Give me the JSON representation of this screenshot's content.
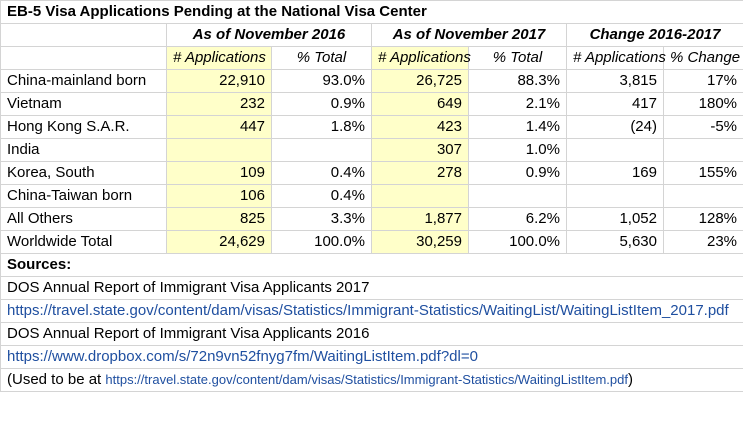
{
  "title": "EB-5 Visa Applications Pending at the National Visa Center",
  "group_headers": {
    "nov2016": "As of November 2016",
    "nov2017": "As of November 2017",
    "change": "Change 2016-2017"
  },
  "sub_headers": {
    "applications": "# Applications",
    "pct_total": "% Total",
    "pct_change": "% Change"
  },
  "rows": [
    {
      "country": "China-mainland born",
      "apps2016": "22,910",
      "pct2016": "93.0%",
      "apps2017": "26,725",
      "pct2017": "88.3%",
      "chg_apps": "3,815",
      "chg_pct": "17%"
    },
    {
      "country": "Vietnam",
      "apps2016": "232",
      "pct2016": "0.9%",
      "apps2017": "649",
      "pct2017": "2.1%",
      "chg_apps": "417",
      "chg_pct": "180%"
    },
    {
      "country": "Hong Kong S.A.R.",
      "apps2016": "447",
      "pct2016": "1.8%",
      "apps2017": "423",
      "pct2017": "1.4%",
      "chg_apps": "(24)",
      "chg_pct": "-5%"
    },
    {
      "country": "India",
      "apps2016": "",
      "pct2016": "",
      "apps2017": "307",
      "pct2017": "1.0%",
      "chg_apps": "",
      "chg_pct": ""
    },
    {
      "country": "Korea, South",
      "apps2016": "109",
      "pct2016": "0.4%",
      "apps2017": "278",
      "pct2017": "0.9%",
      "chg_apps": "169",
      "chg_pct": "155%"
    },
    {
      "country": "China-Taiwan born",
      "apps2016": "106",
      "pct2016": "0.4%",
      "apps2017": "",
      "pct2017": "",
      "chg_apps": "",
      "chg_pct": ""
    },
    {
      "country": "All Others",
      "apps2016": "825",
      "pct2016": "3.3%",
      "apps2017": "1,877",
      "pct2017": "6.2%",
      "chg_apps": "1,052",
      "chg_pct": "128%"
    },
    {
      "country": "Worldwide Total",
      "apps2016": "24,629",
      "pct2016": "100.0%",
      "apps2017": "30,259",
      "pct2017": "100.0%",
      "chg_apps": "5,630",
      "chg_pct": "23%"
    }
  ],
  "sources": {
    "label": "Sources:",
    "report2017": "DOS Annual Report of Immigrant Visa Applicants 2017",
    "link2017": "https://travel.state.gov/content/dam/visas/Statistics/Immigrant-Statistics/WaitingList/WaitingListItem_2017.pdf",
    "report2016": "DOS Annual Report of Immigrant Visa Applicants 2016",
    "link2016": "https://www.dropbox.com/s/72n9vn52fnyg7fm/WaitingListItem.pdf?dl=0",
    "note_prefix": "(Used to be at ",
    "note_link": "https://travel.state.gov/content/dam/visas/Statistics/Immigrant-Statistics/WaitingListItem.pdf",
    "note_suffix": ")"
  },
  "colors": {
    "highlight": "#ffffc9",
    "link": "#1f4fa0",
    "gridline": "#d4d4d4"
  }
}
